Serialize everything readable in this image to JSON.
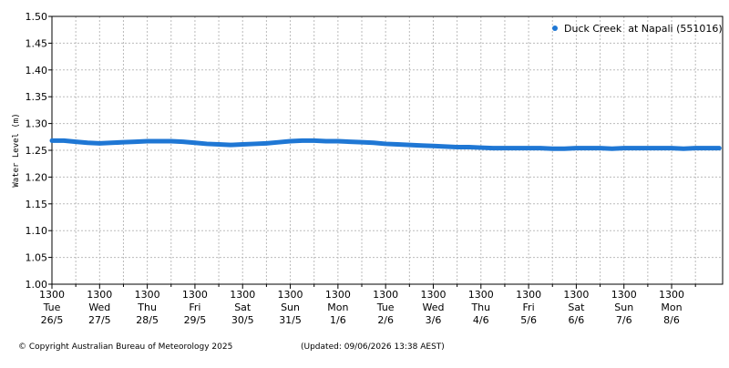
{
  "chart_data": {
    "type": "line",
    "y_label": "Water Level (m)",
    "footer_copyright": "© Copyright Australian Bureau of Meteorology 2025",
    "footer_updated": "(Updated: 09/06/2026 13:38 AEST)",
    "legend_position": "top-right",
    "grid": true,
    "ylim": [
      1.0,
      1.5
    ],
    "yticks": [
      {
        "value": 1.0,
        "label": "1.00"
      },
      {
        "value": 1.05,
        "label": "1.05"
      },
      {
        "value": 1.1,
        "label": "1.10"
      },
      {
        "value": 1.15,
        "label": "1.15"
      },
      {
        "value": 1.2,
        "label": "1.20"
      },
      {
        "value": 1.25,
        "label": "1.25"
      },
      {
        "value": 1.3,
        "label": "1.30"
      },
      {
        "value": 1.35,
        "label": "1.35"
      },
      {
        "value": 1.4,
        "label": "1.40"
      },
      {
        "value": 1.45,
        "label": "1.45"
      },
      {
        "value": 1.5,
        "label": "1.50"
      }
    ],
    "xlim": [
      0,
      14.07
    ],
    "xticks": [
      {
        "value": 0,
        "label": [
          "1300",
          "Tue",
          "26/5"
        ]
      },
      {
        "value": 1,
        "label": [
          "1300",
          "Wed",
          "27/5"
        ]
      },
      {
        "value": 2,
        "label": [
          "1300",
          "Thu",
          "28/5"
        ]
      },
      {
        "value": 3,
        "label": [
          "1300",
          "Fri",
          "29/5"
        ]
      },
      {
        "value": 4,
        "label": [
          "1300",
          "Sat",
          "30/5"
        ]
      },
      {
        "value": 5,
        "label": [
          "1300",
          "Sun",
          "31/5"
        ]
      },
      {
        "value": 6,
        "label": [
          "1300",
          "Mon",
          "1/6"
        ]
      },
      {
        "value": 7,
        "label": [
          "1300",
          "Tue",
          "2/6"
        ]
      },
      {
        "value": 8,
        "label": [
          "1300",
          "Wed",
          "3/6"
        ]
      },
      {
        "value": 9,
        "label": [
          "1300",
          "Thu",
          "4/6"
        ]
      },
      {
        "value": 10,
        "label": [
          "1300",
          "Fri",
          "5/6"
        ]
      },
      {
        "value": 11,
        "label": [
          "1300",
          "Sat",
          "6/6"
        ]
      },
      {
        "value": 12,
        "label": [
          "1300",
          "Sun",
          "7/6"
        ]
      },
      {
        "value": 13,
        "label": [
          "1300",
          "Mon",
          "8/6"
        ]
      }
    ],
    "xminorticks": [
      0.5,
      1.5,
      2.5,
      3.5,
      4.5,
      5.5,
      6.5,
      7.5,
      8.5,
      9.5,
      10.5,
      11.5,
      12.5,
      13.5
    ],
    "series": [
      {
        "name": "Duck Creek  at Napali (551016)",
        "color": "#1f77d4",
        "x": [
          0,
          0.25,
          0.5,
          0.75,
          1,
          1.25,
          1.5,
          1.75,
          2,
          2.25,
          2.5,
          2.75,
          3,
          3.25,
          3.5,
          3.75,
          4,
          4.25,
          4.5,
          4.75,
          5,
          5.25,
          5.5,
          5.75,
          6,
          6.25,
          6.5,
          6.75,
          7,
          7.25,
          7.5,
          7.75,
          8,
          8.25,
          8.5,
          8.75,
          9,
          9.25,
          9.5,
          9.75,
          10,
          10.25,
          10.5,
          10.75,
          11,
          11.25,
          11.5,
          11.75,
          12,
          12.25,
          12.5,
          12.75,
          13,
          13.25,
          13.5,
          13.75,
          14
        ],
        "values": [
          1.268,
          1.268,
          1.266,
          1.264,
          1.263,
          1.264,
          1.265,
          1.266,
          1.267,
          1.267,
          1.267,
          1.266,
          1.264,
          1.262,
          1.261,
          1.26,
          1.261,
          1.262,
          1.263,
          1.265,
          1.267,
          1.268,
          1.268,
          1.267,
          1.267,
          1.266,
          1.265,
          1.264,
          1.262,
          1.261,
          1.26,
          1.259,
          1.258,
          1.257,
          1.256,
          1.256,
          1.255,
          1.254,
          1.254,
          1.254,
          1.254,
          1.254,
          1.253,
          1.253,
          1.254,
          1.254,
          1.254,
          1.253,
          1.254,
          1.254,
          1.254,
          1.254,
          1.254,
          1.253,
          1.254,
          1.254,
          1.254
        ]
      }
    ]
  }
}
